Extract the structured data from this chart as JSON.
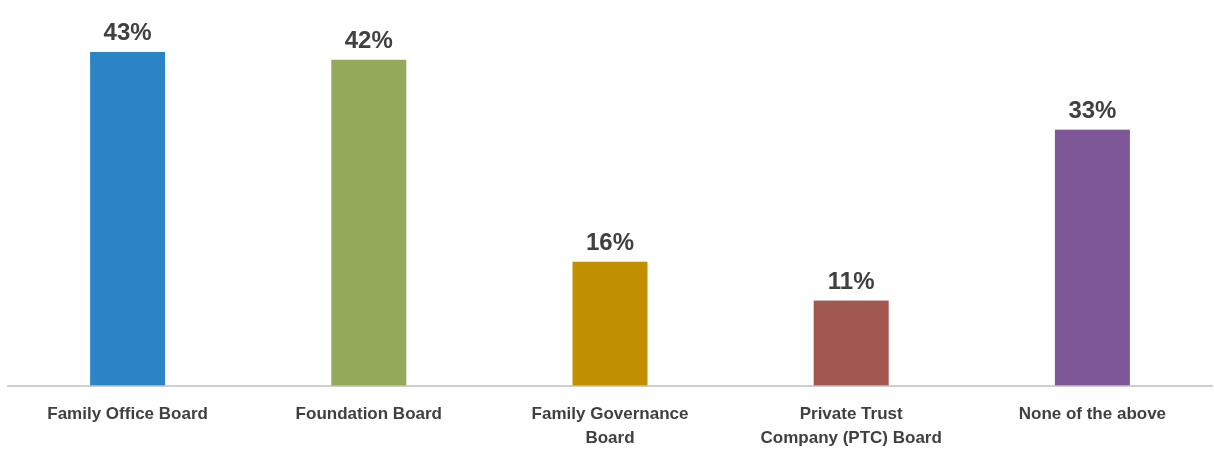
{
  "chart_data": {
    "type": "bar",
    "categories": [
      "Family Office Board",
      "Foundation Board",
      "Family Governance Board",
      "Private Trust Company (PTC) Board",
      "None of the above"
    ],
    "values": [
      43,
      42,
      16,
      11,
      33
    ],
    "value_labels": [
      "43%",
      "42%",
      "16%",
      "11%",
      "33%"
    ],
    "colors": [
      "#2a84c6",
      "#93aa5a",
      "#c09000",
      "#a0584f",
      "#7e5798"
    ]
  }
}
